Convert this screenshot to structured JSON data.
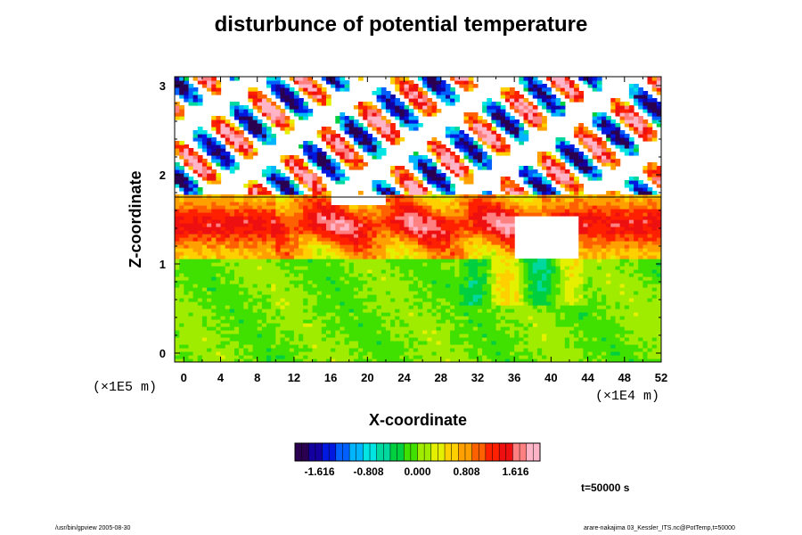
{
  "page": {
    "title": "disturbunce of potential temperature",
    "time_label": "t=50000 s",
    "footer_left": "/usr/bin/gpview 2005-08-30",
    "footer_right": "arare-nakajima  03_Kessler_ITS.nc@PotTemp,t=50000"
  },
  "chart_data": {
    "type": "heatmap",
    "title": "disturbunce of potential temperature",
    "xlabel": "X-coordinate",
    "ylabel": "Z-coordinate",
    "x_scale_label": "(×1E4 m)",
    "z_scale_label": "(×1E5 m)",
    "xlim": [
      -1,
      52
    ],
    "zlim": [
      -0.1,
      3.1
    ],
    "x_ticks": [
      "0",
      "4",
      "8",
      "12",
      "16",
      "20",
      "24",
      "28",
      "32",
      "36",
      "40",
      "44",
      "48",
      "52"
    ],
    "z_ticks": [
      "0",
      "1",
      "2",
      "3"
    ],
    "colorbar": {
      "min": -2.02,
      "max": 2.02,
      "tick_labels": [
        "-1.616",
        "-0.808",
        "0.000",
        "0.808",
        "1.616"
      ],
      "colors": [
        "#2a0050",
        "#1400a0",
        "#0018e0",
        "#0060ff",
        "#00b4ff",
        "#00e4e4",
        "#00d8a0",
        "#00d040",
        "#40e000",
        "#a0ec00",
        "#e4f000",
        "#ffd000",
        "#ffa000",
        "#ff6000",
        "#ff2000",
        "#ee1010",
        "#ff8080",
        "#ffb4c8"
      ]
    },
    "fields": [
      {
        "region": "upper layer (z 1.8–3.1)",
        "pattern": "wave disturbance",
        "value_range": [
          -2.0,
          2.0
        ]
      },
      {
        "region": "mid layer (z 1.05–1.75)",
        "pattern": "warm convective disturbance",
        "value_range": [
          0.4,
          2.0
        ]
      },
      {
        "region": "lower layer (z 0–1.05)",
        "pattern": "near zero",
        "value_range": [
          -0.3,
          0.3
        ]
      }
    ]
  }
}
